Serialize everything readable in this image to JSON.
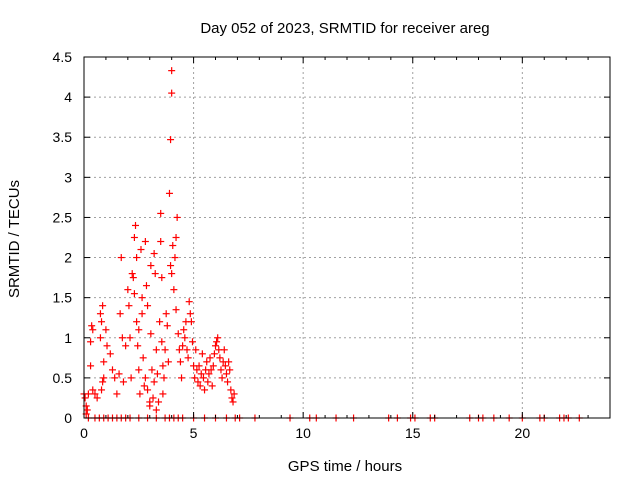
{
  "chart_data": {
    "type": "scatter",
    "title": "Day 052 of 2023, SRMTID for receiver areg",
    "xlabel": "GPS time / hours",
    "ylabel": "SRMTID / TECUs",
    "xlim": [
      0,
      24
    ],
    "ylim": [
      0,
      4.5
    ],
    "xticks": [
      0,
      5,
      10,
      15,
      20
    ],
    "xtick_labels": [
      "0",
      "5",
      "10",
      "15",
      "20"
    ],
    "yticks": [
      0,
      0.5,
      1,
      1.5,
      2,
      2.5,
      3,
      3.5,
      4,
      4.5
    ],
    "ytick_labels": [
      "0",
      "0.5",
      "1",
      "1.5",
      "2",
      "2.5",
      "3",
      "3.5",
      "4",
      "4.5"
    ],
    "grid": true,
    "marker": "+",
    "color": "#ff0000",
    "series": [
      {
        "name": "areg",
        "points": [
          [
            0.0,
            0.3
          ],
          [
            0.05,
            0.25
          ],
          [
            0.1,
            0.15
          ],
          [
            0.1,
            0.05
          ],
          [
            0.15,
            0.1
          ],
          [
            0.2,
            0.3
          ],
          [
            0.3,
            0.65
          ],
          [
            0.3,
            0.95
          ],
          [
            0.35,
            1.15
          ],
          [
            0.4,
            1.1
          ],
          [
            0.4,
            0.35
          ],
          [
            0.5,
            0.3
          ],
          [
            0.6,
            0.25
          ],
          [
            0.75,
            1.0
          ],
          [
            0.75,
            1.3
          ],
          [
            0.8,
            1.2
          ],
          [
            0.85,
            1.4
          ],
          [
            0.9,
            0.7
          ],
          [
            0.85,
            0.45
          ],
          [
            0.8,
            0.35
          ],
          [
            0.9,
            0.5
          ],
          [
            1.0,
            1.1
          ],
          [
            1.05,
            0.9
          ],
          [
            1.2,
            0.8
          ],
          [
            1.3,
            0.6
          ],
          [
            1.4,
            0.5
          ],
          [
            1.5,
            0.3
          ],
          [
            1.6,
            0.55
          ],
          [
            1.65,
            1.3
          ],
          [
            1.7,
            2.0
          ],
          [
            1.75,
            1.0
          ],
          [
            1.8,
            0.45
          ],
          [
            1.9,
            0.9
          ],
          [
            2.0,
            1.6
          ],
          [
            2.05,
            1.4
          ],
          [
            2.1,
            1.0
          ],
          [
            2.15,
            0.5
          ],
          [
            2.2,
            1.8
          ],
          [
            2.25,
            1.75
          ],
          [
            2.3,
            2.25
          ],
          [
            2.3,
            1.55
          ],
          [
            2.35,
            2.4
          ],
          [
            2.4,
            2.0
          ],
          [
            2.4,
            1.2
          ],
          [
            2.45,
            0.9
          ],
          [
            2.5,
            0.6
          ],
          [
            2.5,
            1.1
          ],
          [
            2.55,
            0.3
          ],
          [
            2.6,
            2.1
          ],
          [
            2.65,
            1.5
          ],
          [
            2.65,
            1.3
          ],
          [
            2.7,
            0.75
          ],
          [
            2.75,
            0.4
          ],
          [
            2.8,
            0.5
          ],
          [
            2.8,
            2.2
          ],
          [
            2.85,
            1.65
          ],
          [
            2.9,
            1.4
          ],
          [
            2.9,
            0.35
          ],
          [
            3.0,
            0.2
          ],
          [
            3.0,
            0.15
          ],
          [
            3.05,
            1.9
          ],
          [
            3.05,
            1.05
          ],
          [
            3.1,
            0.6
          ],
          [
            3.15,
            0.25
          ],
          [
            3.2,
            2.05
          ],
          [
            3.2,
            0.45
          ],
          [
            3.25,
            1.8
          ],
          [
            3.3,
            0.85
          ],
          [
            3.3,
            0.1
          ],
          [
            3.35,
            0.55
          ],
          [
            3.4,
            0.2
          ],
          [
            3.45,
            1.2
          ],
          [
            3.5,
            2.55
          ],
          [
            3.5,
            2.2
          ],
          [
            3.55,
            1.75
          ],
          [
            3.55,
            0.95
          ],
          [
            3.6,
            0.65
          ],
          [
            3.6,
            0.3
          ],
          [
            3.65,
            0.5
          ],
          [
            3.7,
            0.85
          ],
          [
            3.75,
            1.3
          ],
          [
            3.8,
            1.15
          ],
          [
            3.85,
            0.7
          ],
          [
            3.9,
            2.8
          ],
          [
            3.95,
            3.47
          ],
          [
            3.95,
            1.9
          ],
          [
            4.0,
            4.05
          ],
          [
            4.0,
            4.33
          ],
          [
            4.0,
            1.8
          ],
          [
            4.05,
            2.15
          ],
          [
            4.1,
            1.6
          ],
          [
            4.15,
            2.0
          ],
          [
            4.2,
            2.25
          ],
          [
            4.2,
            1.35
          ],
          [
            4.25,
            2.5
          ],
          [
            4.3,
            1.05
          ],
          [
            4.35,
            0.85
          ],
          [
            4.4,
            0.7
          ],
          [
            4.45,
            0.5
          ],
          [
            4.5,
            0.9
          ],
          [
            4.55,
            1.1
          ],
          [
            4.6,
            1.0
          ],
          [
            4.65,
            1.2
          ],
          [
            4.7,
            0.85
          ],
          [
            4.75,
            0.75
          ],
          [
            4.8,
            1.45
          ],
          [
            4.85,
            1.3
          ],
          [
            4.9,
            1.2
          ],
          [
            4.95,
            0.95
          ],
          [
            5.0,
            0.65
          ],
          [
            5.05,
            0.5
          ],
          [
            5.1,
            0.85
          ],
          [
            5.15,
            0.6
          ],
          [
            5.2,
            0.45
          ],
          [
            5.25,
            0.65
          ],
          [
            5.3,
            0.4
          ],
          [
            5.35,
            0.55
          ],
          [
            5.4,
            0.8
          ],
          [
            5.45,
            0.5
          ],
          [
            5.5,
            0.35
          ],
          [
            5.55,
            0.6
          ],
          [
            5.6,
            0.7
          ],
          [
            5.65,
            0.45
          ],
          [
            5.7,
            0.55
          ],
          [
            5.75,
            0.75
          ],
          [
            5.8,
            0.6
          ],
          [
            5.85,
            0.4
          ],
          [
            5.9,
            0.65
          ],
          [
            5.95,
            0.8
          ],
          [
            6.0,
            0.9
          ],
          [
            6.05,
            0.95
          ],
          [
            6.1,
            1.0
          ],
          [
            6.15,
            0.85
          ],
          [
            6.2,
            0.75
          ],
          [
            6.25,
            0.6
          ],
          [
            6.3,
            0.5
          ],
          [
            6.35,
            0.7
          ],
          [
            6.4,
            0.85
          ],
          [
            6.45,
            0.65
          ],
          [
            6.5,
            0.55
          ],
          [
            6.55,
            0.45
          ],
          [
            6.6,
            0.7
          ],
          [
            6.65,
            0.6
          ],
          [
            6.7,
            0.35
          ],
          [
            6.75,
            0.25
          ],
          [
            6.8,
            0.2
          ],
          [
            6.85,
            0.3
          ],
          [
            0.2,
            0
          ],
          [
            0.5,
            0
          ],
          [
            0.7,
            0
          ],
          [
            0.9,
            0
          ],
          [
            1.1,
            0
          ],
          [
            1.3,
            0
          ],
          [
            1.5,
            0
          ],
          [
            1.7,
            0
          ],
          [
            1.9,
            0
          ],
          [
            2.1,
            0
          ],
          [
            2.5,
            0
          ],
          [
            2.9,
            0
          ],
          [
            3.3,
            0
          ],
          [
            3.7,
            0
          ],
          [
            3.9,
            0
          ],
          [
            4.1,
            0
          ],
          [
            4.3,
            0
          ],
          [
            4.5,
            0
          ],
          [
            5.0,
            0
          ],
          [
            5.5,
            0
          ],
          [
            6.0,
            0
          ],
          [
            6.5,
            0
          ],
          [
            6.9,
            0
          ],
          [
            7.1,
            0
          ],
          [
            7.8,
            0
          ],
          [
            9.4,
            0
          ],
          [
            10.3,
            0
          ],
          [
            10.6,
            0
          ],
          [
            11.5,
            0
          ],
          [
            12.3,
            0
          ],
          [
            13.9,
            0
          ],
          [
            14.3,
            0
          ],
          [
            14.9,
            0
          ],
          [
            15.1,
            0
          ],
          [
            15.8,
            0
          ],
          [
            16.0,
            0
          ],
          [
            17.6,
            0
          ],
          [
            18.0,
            0
          ],
          [
            18.2,
            0
          ],
          [
            18.7,
            0
          ],
          [
            19.4,
            0
          ],
          [
            20.0,
            0
          ],
          [
            20.8,
            0
          ],
          [
            21.0,
            0
          ],
          [
            21.7,
            0
          ],
          [
            21.9,
            0
          ],
          [
            22.1,
            0
          ],
          [
            22.6,
            0
          ]
        ]
      }
    ]
  }
}
